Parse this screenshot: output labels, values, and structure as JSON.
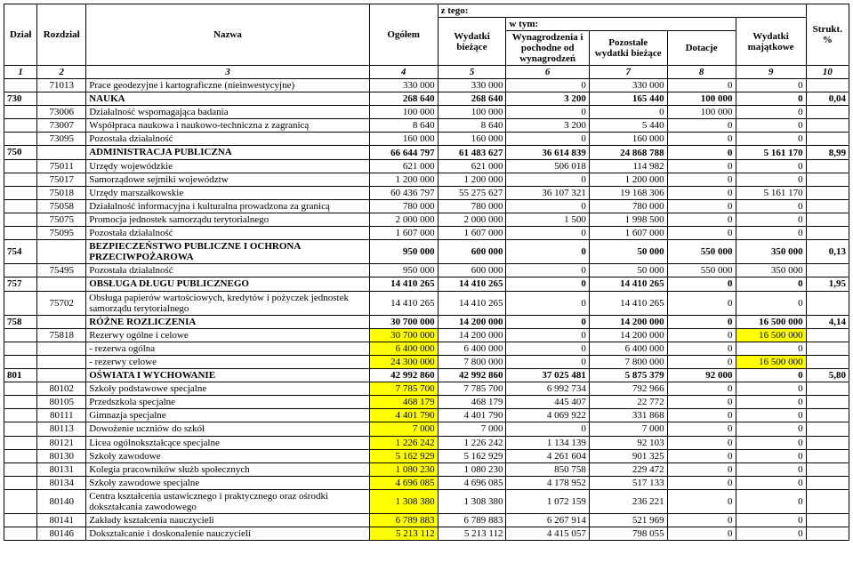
{
  "header": {
    "dzial": "Dział",
    "rozdzial": "Rozdział",
    "nazwa": "Nazwa",
    "ogolem": "Ogółem",
    "ztego": "z tego:",
    "bieza": "Wydatki bieżące",
    "wtym": "w tym:",
    "wynag": "Wynagrodzenia i pochodne od wynagrodzeń",
    "pozost": "Pozostałe wydatki bieżące",
    "dotac": "Dotacje",
    "majat": "Wydatki majątkowe",
    "strukt": "Strukt. %",
    "nums": [
      "1",
      "2",
      "3",
      "4",
      "5",
      "6",
      "7",
      "8",
      "9",
      "10"
    ]
  },
  "colors": {
    "highlight": "#ffff00",
    "border": "#000000",
    "bg": "#ffffff"
  },
  "rows": [
    {
      "rozd": "71013",
      "nazwa": "Prace geodezyjne i kartograficzne (nieinwestycyjne)",
      "og": "330 000",
      "bi": "330 000",
      "wy": "0",
      "po": "330 000",
      "do": "0",
      "ma": "0"
    },
    {
      "section": true,
      "dzial": "730",
      "nazwa": "NAUKA",
      "og": "268 640",
      "bi": "268 640",
      "wy": "3 200",
      "po": "165 440",
      "do": "100 000",
      "ma": "0",
      "st": "0,04"
    },
    {
      "rozd": "73006",
      "nazwa": "Działalność wspomagająca badania",
      "og": "100 000",
      "bi": "100 000",
      "wy": "0",
      "po": "0",
      "do": "100 000",
      "ma": "0"
    },
    {
      "rozd": "73007",
      "nazwa": "Współpraca naukowa i naukowo-techniczna z zagranicą",
      "og": "8 640",
      "bi": "8 640",
      "wy": "3 200",
      "po": "5 440",
      "do": "0",
      "ma": "0"
    },
    {
      "rozd": "73095",
      "nazwa": "Pozostała działalność",
      "og": "160 000",
      "bi": "160 000",
      "wy": "0",
      "po": "160 000",
      "do": "0",
      "ma": "0"
    },
    {
      "section": true,
      "dzial": "750",
      "nazwa": "ADMINISTRACJA PUBLICZNA",
      "og": "66 644 797",
      "bi": "61 483 627",
      "wy": "36 614 839",
      "po": "24 868 788",
      "do": "0",
      "ma": "5 161 170",
      "st": "8,99"
    },
    {
      "rozd": "75011",
      "nazwa": "Urzędy wojewódzkie",
      "og": "621 000",
      "bi": "621 000",
      "wy": "506 018",
      "po": "114 982",
      "do": "0",
      "ma": "0"
    },
    {
      "rozd": "75017",
      "nazwa": "Samorządowe sejmiki województw",
      "og": "1 200 000",
      "bi": "1 200 000",
      "wy": "0",
      "po": "1 200 000",
      "do": "0",
      "ma": "0"
    },
    {
      "rozd": "75018",
      "nazwa": "Urzędy marszałkowskie",
      "og": "60 436 797",
      "bi": "55 275 627",
      "wy": "36 107 321",
      "po": "19 168 306",
      "do": "0",
      "ma": "5 161 170"
    },
    {
      "rozd": "75058",
      "nazwa": "Działalność informacyjna i kulturalna prowadzona za granicą",
      "og": "780 000",
      "bi": "780 000",
      "wy": "0",
      "po": "780 000",
      "do": "0",
      "ma": "0"
    },
    {
      "rozd": "75075",
      "nazwa": "Promocja jednostek samorządu terytorialnego",
      "og": "2 000 000",
      "bi": "2 000 000",
      "wy": "1 500",
      "po": "1 998 500",
      "do": "0",
      "ma": "0"
    },
    {
      "rozd": "75095",
      "nazwa": "Pozostała działalność",
      "og": "1 607 000",
      "bi": "1 607 000",
      "wy": "0",
      "po": "1 607 000",
      "do": "0",
      "ma": "0"
    },
    {
      "section": true,
      "dzial": "754",
      "nazwa": "BEZPIECZEŃSTWO PUBLICZNE I OCHRONA PRZECIWPOŻAROWA",
      "og": "950 000",
      "bi": "600 000",
      "wy": "0",
      "po": "50 000",
      "do": "550 000",
      "ma": "350 000",
      "st": "0,13"
    },
    {
      "rozd": "75495",
      "nazwa": "Pozostała działalność",
      "og": "950 000",
      "bi": "600 000",
      "wy": "0",
      "po": "50 000",
      "do": "550 000",
      "ma": "350 000"
    },
    {
      "section": true,
      "dzial": "757",
      "nazwa": "OBSŁUGA DŁUGU PUBLICZNEGO",
      "og": "14 410 265",
      "bi": "14 410 265",
      "wy": "0",
      "po": "14 410 265",
      "do": "0",
      "ma": "0",
      "st": "1,95"
    },
    {
      "rozd": "75702",
      "nazwa": "Obsługa papierów wartościowych, kredytów i pożyczek jednostek samorządu terytorialnego",
      "og": "14 410 265",
      "bi": "14 410 265",
      "wy": "0",
      "po": "14 410 265",
      "do": "0",
      "ma": "0"
    },
    {
      "section": true,
      "dzial": "758",
      "nazwa": "RÓŻNE ROZLICZENIA",
      "og": "30 700 000",
      "bi": "14 200 000",
      "wy": "0",
      "po": "14 200 000",
      "do": "0",
      "ma": "16 500 000",
      "st": "4,14"
    },
    {
      "rozd": "75818",
      "nazwa": "Rezerwy ogólne i celowe",
      "og": "30 700 000",
      "bi": "14 200 000",
      "wy": "0",
      "po": "14 200 000",
      "do": "0",
      "ma": "16 500 000",
      "yellow": [
        "og",
        "ma"
      ]
    },
    {
      "nazwa": "- rezerwa ogólna",
      "og": "6 400 000",
      "bi": "6 400 000",
      "wy": "0",
      "po": "6 400 000",
      "do": "0",
      "ma": "0",
      "yellow": [
        "og"
      ]
    },
    {
      "nazwa": "- rezerwy celowe",
      "og": "24 300 000",
      "bi": "7 800 000",
      "wy": "0",
      "po": "7 800 000",
      "do": "0",
      "ma": "16 500 000",
      "yellow": [
        "og",
        "ma"
      ]
    },
    {
      "section": true,
      "dzial": "801",
      "nazwa": "OŚWIATA I WYCHOWANIE",
      "og": "42 992 860",
      "bi": "42 992 860",
      "wy": "37 025 481",
      "po": "5 875 379",
      "do": "92 000",
      "ma": "0",
      "st": "5,80"
    },
    {
      "rozd": "80102",
      "nazwa": "Szkoły podstawowe specjalne",
      "og": "7 785 700",
      "bi": "7 785 700",
      "wy": "6 992 734",
      "po": "792 966",
      "do": "0",
      "ma": "0",
      "yellow": [
        "og"
      ]
    },
    {
      "rozd": "80105",
      "nazwa": "Przedszkola specjalne",
      "og": "468 179",
      "bi": "468 179",
      "wy": "445 407",
      "po": "22 772",
      "do": "0",
      "ma": "0",
      "yellow": [
        "og"
      ]
    },
    {
      "rozd": "80111",
      "nazwa": "Gimnazja specjalne",
      "og": "4 401 790",
      "bi": "4 401 790",
      "wy": "4 069 922",
      "po": "331 868",
      "do": "0",
      "ma": "0",
      "yellow": [
        "og"
      ]
    },
    {
      "rozd": "80113",
      "nazwa": "Dowożenie uczniów do szkół",
      "og": "7 000",
      "bi": "7 000",
      "wy": "0",
      "po": "7 000",
      "do": "0",
      "ma": "0",
      "yellow": [
        "og"
      ]
    },
    {
      "rozd": "80121",
      "nazwa": "Licea ogólnokształcące specjalne",
      "og": "1 226 242",
      "bi": "1 226 242",
      "wy": "1 134 139",
      "po": "92 103",
      "do": "0",
      "ma": "0",
      "yellow": [
        "og"
      ]
    },
    {
      "rozd": "80130",
      "nazwa": "Szkoły zawodowe",
      "og": "5 162 929",
      "bi": "5 162 929",
      "wy": "4 261 604",
      "po": "901 325",
      "do": "0",
      "ma": "0",
      "yellow": [
        "og"
      ]
    },
    {
      "rozd": "80131",
      "nazwa": "Kolegia pracowników służb społecznych",
      "og": "1 080 230",
      "bi": "1 080 230",
      "wy": "850 758",
      "po": "229 472",
      "do": "0",
      "ma": "0",
      "yellow": [
        "og"
      ]
    },
    {
      "rozd": "80134",
      "nazwa": "Szkoły zawodowe specjalne",
      "og": "4 696 085",
      "bi": "4 696 085",
      "wy": "4 178 952",
      "po": "517 133",
      "do": "0",
      "ma": "0",
      "yellow": [
        "og"
      ]
    },
    {
      "rozd": "80140",
      "nazwa": "Centra kształcenia ustawicznego i praktycznego oraz ośrodki dokształcania zawodowego",
      "og": "1 308 380",
      "bi": "1 308 380",
      "wy": "1 072 159",
      "po": "236 221",
      "do": "0",
      "ma": "0",
      "yellow": [
        "og"
      ]
    },
    {
      "rozd": "80141",
      "nazwa": "Zakłady kształcenia nauczycieli",
      "og": "6 789 883",
      "bi": "6 789 883",
      "wy": "6 267 914",
      "po": "521 969",
      "do": "0",
      "ma": "0",
      "yellow": [
        "og"
      ]
    },
    {
      "rozd": "80146",
      "nazwa": "Dokształcanie i doskonalenie nauczycieli",
      "og": "5 213 112",
      "bi": "5 213 112",
      "wy": "4 415 057",
      "po": "798 055",
      "do": "0",
      "ma": "0",
      "yellow": [
        "og"
      ]
    }
  ]
}
